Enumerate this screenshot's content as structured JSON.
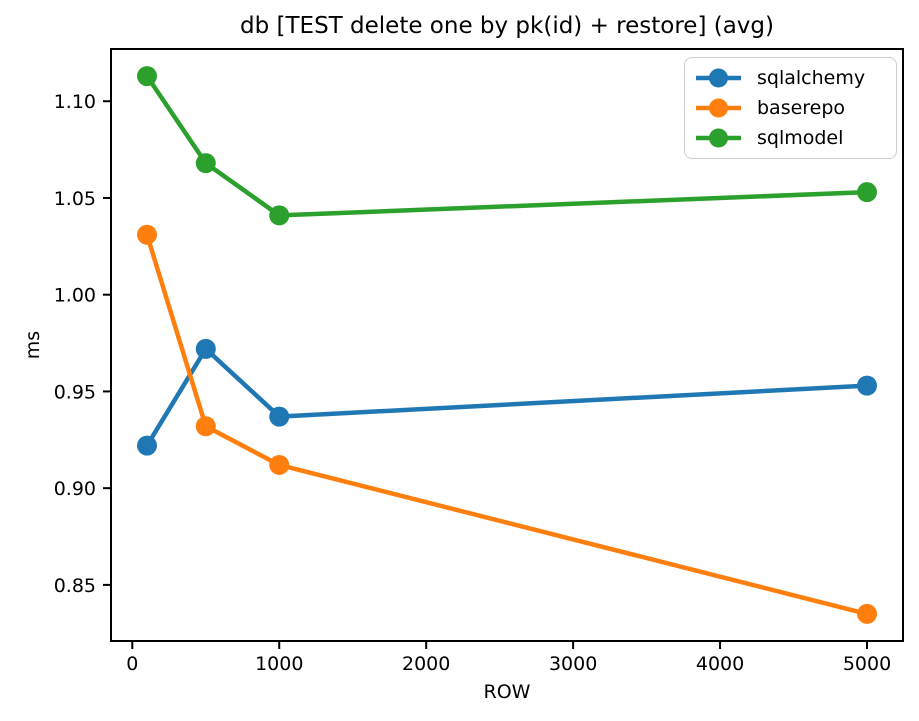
{
  "figure": {
    "title": "db [TEST delete one by pk(id) + restore] (avg)",
    "xlabel": "ROW",
    "ylabel": "ms",
    "background_color": "#ffffff",
    "spine_color": "#000000",
    "legend_border_color": "#cccccc"
  },
  "chart_data": {
    "type": "line",
    "title": "db [TEST delete one by pk(id) + restore] (avg)",
    "xlabel": "ROW",
    "ylabel": "ms",
    "x": [
      100,
      500,
      1000,
      5000
    ],
    "series": [
      {
        "name": "sqlalchemy",
        "color": "#1f77b4",
        "values": [
          0.922,
          0.972,
          0.937,
          0.953
        ]
      },
      {
        "name": "baserepo",
        "color": "#ff7f0e",
        "values": [
          1.031,
          0.932,
          0.912,
          0.835
        ]
      },
      {
        "name": "sqlmodel",
        "color": "#2ca02c",
        "values": [
          1.113,
          1.068,
          1.041,
          1.053
        ]
      }
    ],
    "marker": "o",
    "grid": false,
    "legend_position": "upper right",
    "xlim": [
      -145,
      5245
    ],
    "ylim": [
      0.821,
      1.127
    ],
    "xticks": [
      0,
      1000,
      2000,
      3000,
      4000,
      5000
    ],
    "xtick_labels": [
      "0",
      "1000",
      "2000",
      "3000",
      "4000",
      "5000"
    ],
    "yticks": [
      0.85,
      0.9,
      0.95,
      1.0,
      1.05,
      1.1
    ],
    "ytick_labels": [
      "0.85",
      "0.90",
      "0.95",
      "1.00",
      "1.05",
      "1.10"
    ]
  }
}
